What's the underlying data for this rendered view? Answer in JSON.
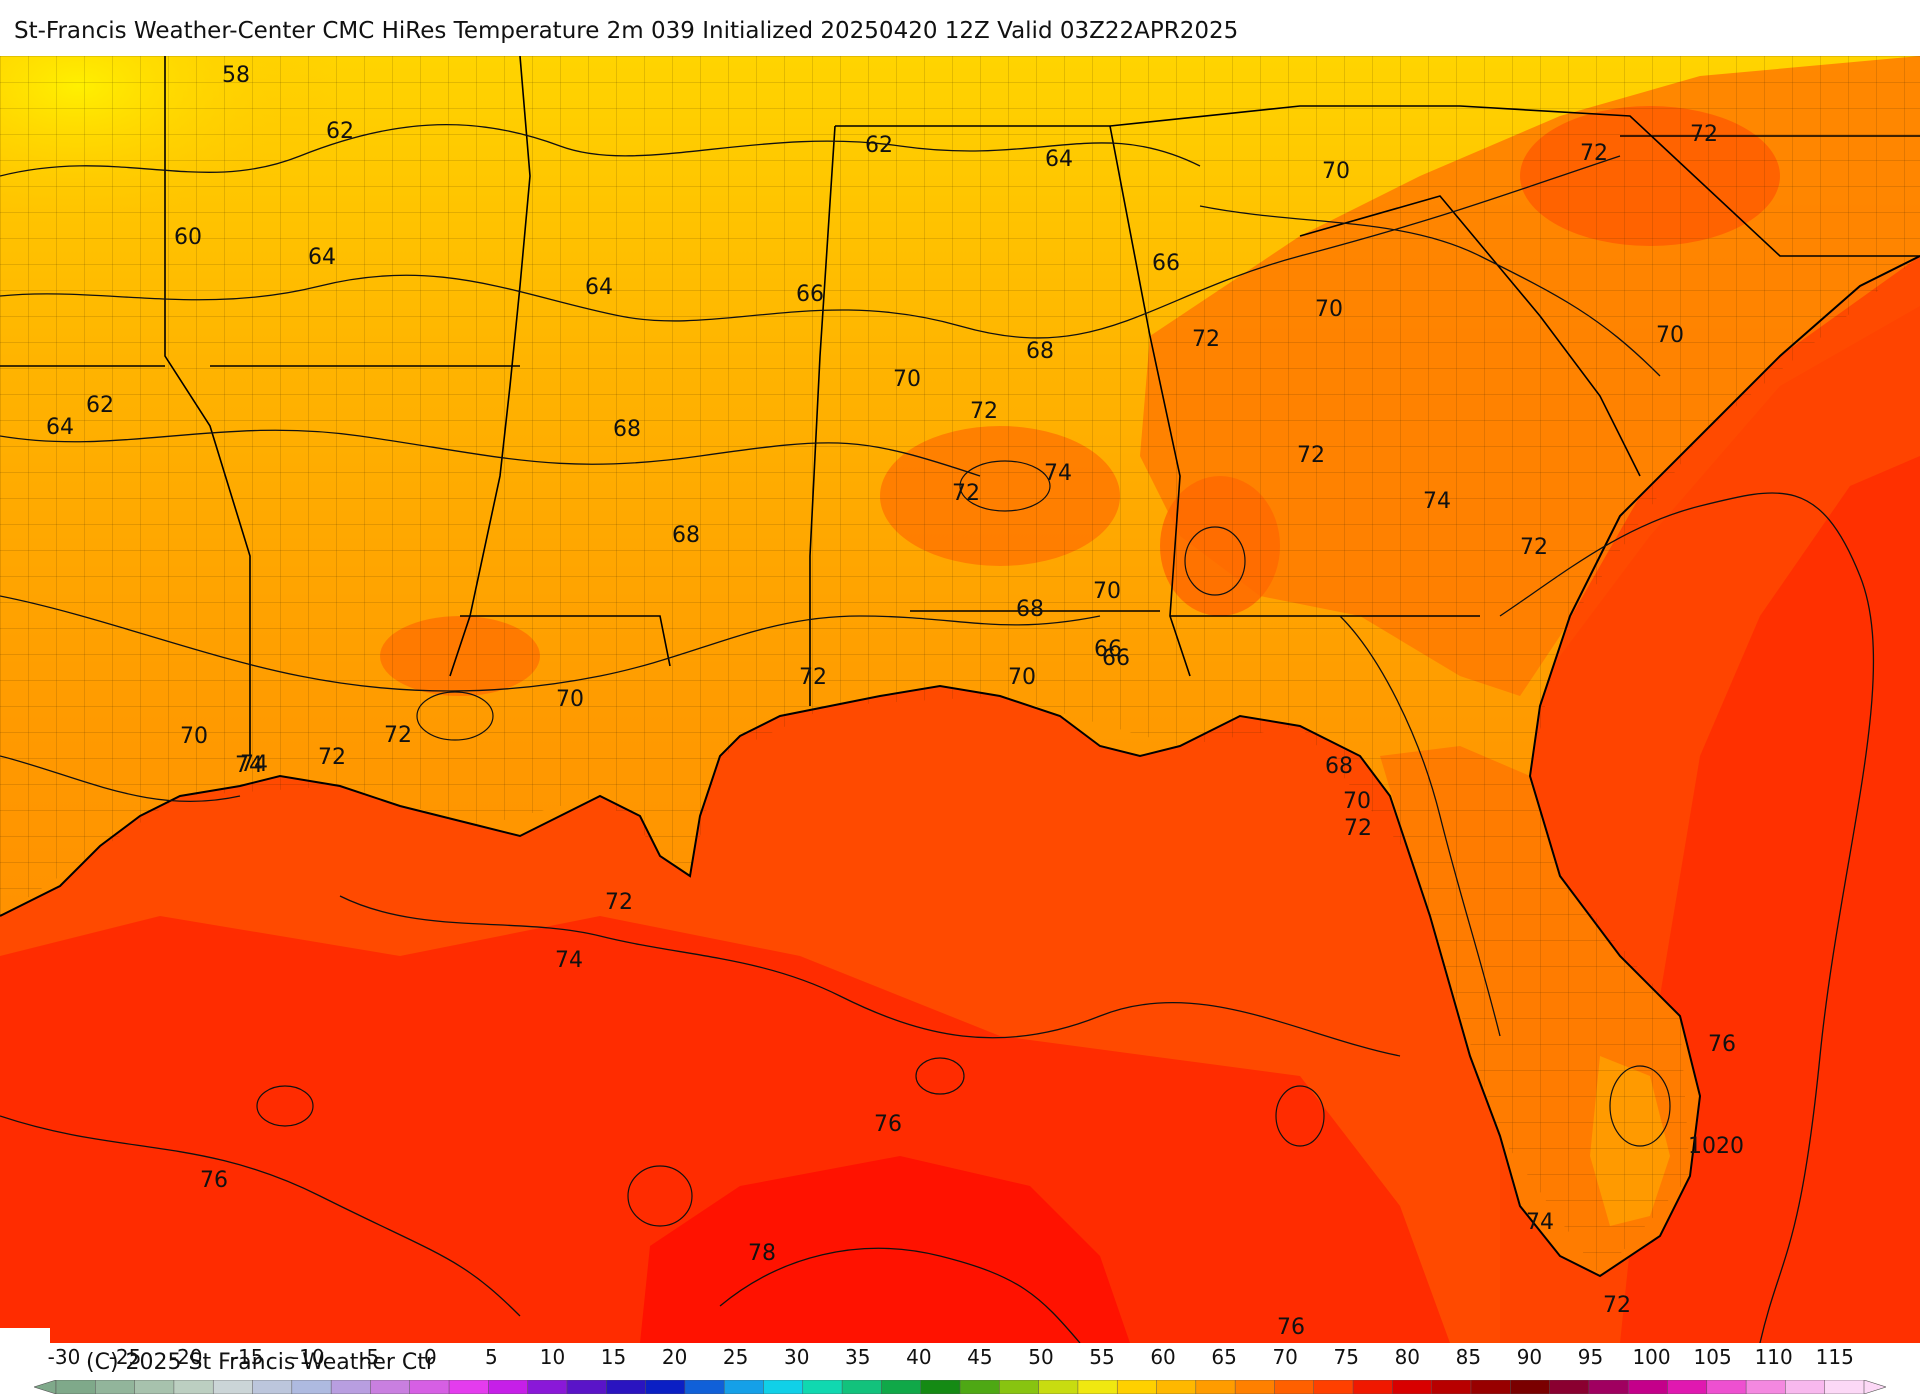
{
  "title": "St-Francis Weather-Center CMC HiRes Temperature 2m  039 Initialized 20250420 12Z Valid 03Z22APR2025",
  "copyright": "(C) 2025 St Francis Weather Ctr",
  "contour_labels": [
    "58",
    "62",
    "60",
    "64",
    "64",
    "62",
    "64",
    "62",
    "64",
    "66",
    "66",
    "66",
    "68",
    "68",
    "68",
    "70",
    "70",
    "72",
    "72",
    "72",
    "72",
    "74",
    "72",
    "70",
    "72",
    "70",
    "74",
    "72",
    "72",
    "70",
    "70",
    "70",
    "68",
    "70",
    "66",
    "72",
    "72",
    "72",
    "74",
    "72",
    "74",
    "76",
    "76",
    "76",
    "78",
    "76",
    "1020",
    "74",
    "72",
    "74",
    "70",
    "68"
  ],
  "scale_ticks": [
    "-30",
    "-25",
    "-20",
    "-15",
    "-10",
    "-5",
    "0",
    "5",
    "10",
    "15",
    "20",
    "25",
    "30",
    "35",
    "40",
    "45",
    "50",
    "55",
    "60",
    "65",
    "70",
    "75",
    "80",
    "85",
    "90",
    "95",
    "100",
    "105",
    "110",
    "115"
  ],
  "colors": {
    "bar": [
      "#7fa98a",
      "#92b59b",
      "#a7c2ad",
      "#bccfc1",
      "#cbd5d7",
      "#bcc6dc",
      "#aebae0",
      "#b89ee0",
      "#c97fe0",
      "#d65fe4",
      "#e43cee",
      "#c61fe8",
      "#8a18d8",
      "#5a14c8",
      "#2a14c0",
      "#0b1fc4",
      "#1060d8",
      "#15a0e8",
      "#10d0e8",
      "#10d8b0",
      "#12c27c",
      "#10a848",
      "#158a14",
      "#4ea814",
      "#88c410",
      "#c8dc10",
      "#f0e810",
      "#ffd000",
      "#ffb800",
      "#ff9c00",
      "#ff8000",
      "#ff6000",
      "#ff4000",
      "#f01800",
      "#d80000",
      "#b80000",
      "#980000",
      "#7a0000",
      "#8a0030",
      "#a00060",
      "#c4008a",
      "#e018b0",
      "#ee50d0",
      "#f488e0",
      "#f8b8ee",
      "#fcd8f6"
    ],
    "land_north": "#ffc600",
    "land_mid": "#ffa600",
    "land_south": "#ff8e00",
    "warm_east": "#ff7000",
    "gulf": "#ff3a00",
    "gulf_deep": "#ff1400",
    "atlantic": "#ff5200"
  }
}
